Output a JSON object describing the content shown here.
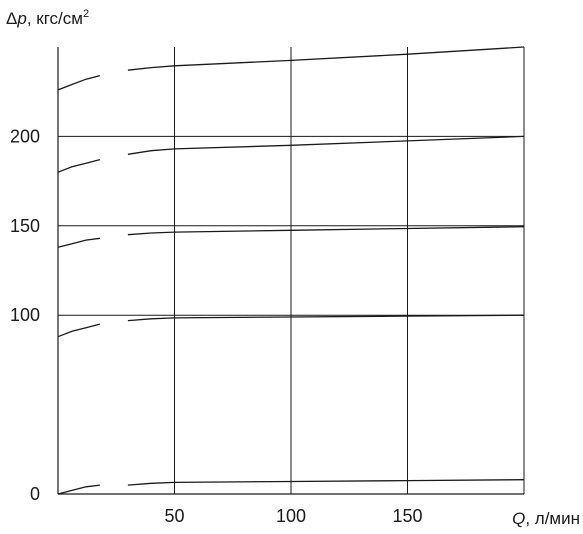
{
  "chart_data": {
    "type": "line",
    "title": "",
    "ylabel": {
      "prefix": "Δ",
      "symbol": "p",
      "unit": ", кгс/см",
      "unit_power": "2"
    },
    "xlabel": {
      "symbol": "Q",
      "unit": ", л/мин"
    },
    "xlim": [
      0,
      200
    ],
    "ylim": [
      0,
      250
    ],
    "x_ticks": [
      50,
      100,
      150
    ],
    "x_tick_labels": [
      "50",
      "100",
      "150"
    ],
    "y_ticks": [
      0,
      100,
      150,
      200
    ],
    "y_tick_labels": [
      "0",
      "100",
      "150",
      "200"
    ],
    "grid": true,
    "gap_between_segments": [
      18,
      30
    ],
    "series": [
      {
        "segments": [
          [
            [
              0,
              0
            ],
            [
              6,
              2
            ],
            [
              12,
              4
            ],
            [
              18,
              5
            ]
          ],
          [
            [
              30,
              5
            ],
            [
              40,
              6
            ],
            [
              50,
              6.5
            ],
            [
              100,
              7
            ],
            [
              150,
              7.5
            ],
            [
              200,
              8
            ]
          ]
        ]
      },
      {
        "segments": [
          [
            [
              0,
              88
            ],
            [
              6,
              91
            ],
            [
              12,
              93
            ],
            [
              18,
              95
            ]
          ],
          [
            [
              30,
              97
            ],
            [
              40,
              98
            ],
            [
              50,
              98.5
            ],
            [
              100,
              99
            ],
            [
              150,
              99.5
            ],
            [
              200,
              100
            ]
          ]
        ]
      },
      {
        "segments": [
          [
            [
              0,
              138
            ],
            [
              6,
              140
            ],
            [
              12,
              142
            ],
            [
              18,
              143
            ]
          ],
          [
            [
              30,
              145
            ],
            [
              40,
              146
            ],
            [
              50,
              146.5
            ],
            [
              100,
              147.5
            ],
            [
              150,
              148.5
            ],
            [
              200,
              149.5
            ]
          ]
        ]
      },
      {
        "segments": [
          [
            [
              0,
              180
            ],
            [
              6,
              183
            ],
            [
              12,
              185
            ],
            [
              18,
              187
            ]
          ],
          [
            [
              30,
              190
            ],
            [
              40,
              192
            ],
            [
              50,
              193
            ],
            [
              100,
              195
            ],
            [
              150,
              197.5
            ],
            [
              200,
              200
            ]
          ]
        ]
      },
      {
        "segments": [
          [
            [
              0,
              226
            ],
            [
              6,
              229
            ],
            [
              12,
              232
            ],
            [
              18,
              234
            ]
          ],
          [
            [
              30,
              237
            ],
            [
              40,
              238.5
            ],
            [
              50,
              239.5
            ],
            [
              100,
              242.5
            ],
            [
              150,
              246
            ],
            [
              200,
              250
            ]
          ]
        ]
      }
    ]
  }
}
